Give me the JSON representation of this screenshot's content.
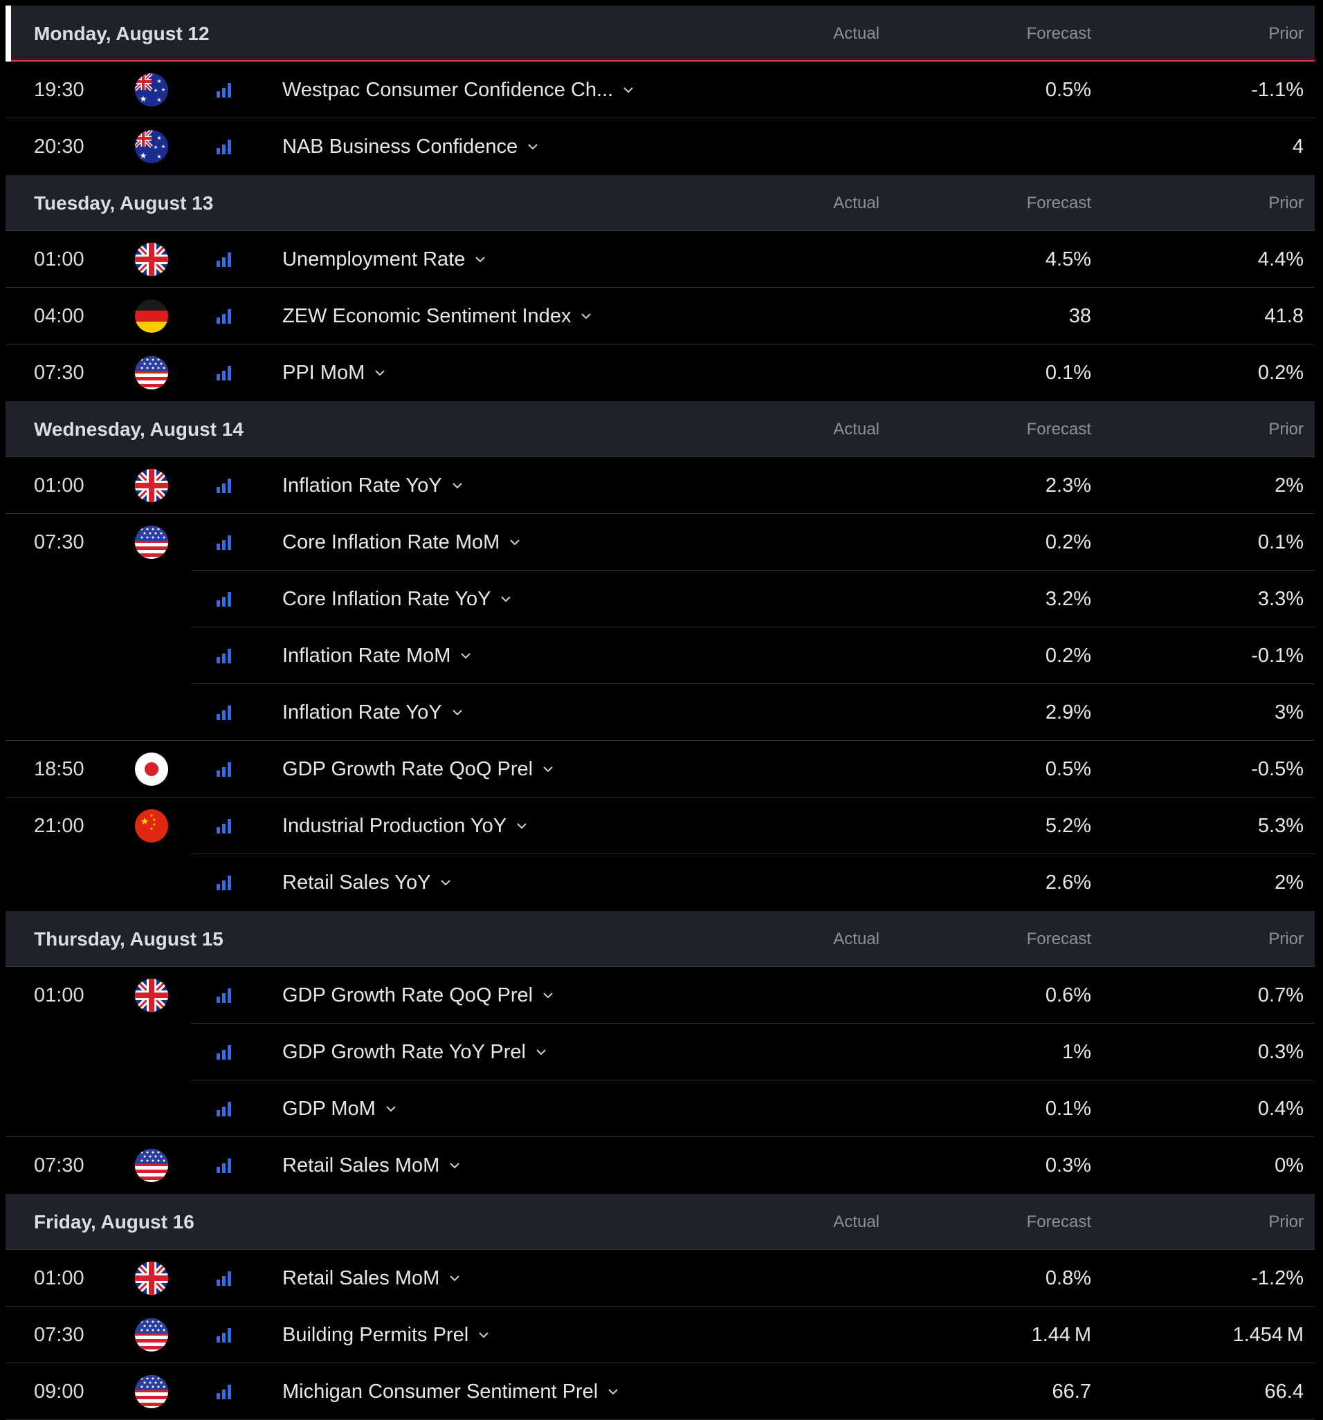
{
  "columns": {
    "actual": "Actual",
    "forecast": "Forecast",
    "prior": "Prior"
  },
  "colors": {
    "background": "#000000",
    "header_bg": "#1f222b",
    "accent_red": "#e23b3b",
    "importance_blue": "#2f6bff"
  },
  "days": [
    {
      "label": "Monday, August 12",
      "events": [
        {
          "time": "19:30",
          "country": "AU",
          "name": "Westpac Consumer Confidence Ch...",
          "actual": "",
          "forecast": "0.5%",
          "prior": "-1.1%"
        },
        {
          "time": "20:30",
          "country": "AU",
          "name": "NAB Business Confidence",
          "actual": "",
          "forecast": "",
          "prior": "4"
        }
      ]
    },
    {
      "label": "Tuesday, August 13",
      "events": [
        {
          "time": "01:00",
          "country": "GB",
          "name": "Unemployment Rate",
          "actual": "",
          "forecast": "4.5%",
          "prior": "4.4%"
        },
        {
          "time": "04:00",
          "country": "DE",
          "name": "ZEW Economic Sentiment Index",
          "actual": "",
          "forecast": "38",
          "prior": "41.8"
        },
        {
          "time": "07:30",
          "country": "US",
          "name": "PPI MoM",
          "actual": "",
          "forecast": "0.1%",
          "prior": "0.2%"
        }
      ]
    },
    {
      "label": "Wednesday, August 14",
      "events": [
        {
          "time": "01:00",
          "country": "GB",
          "name": "Inflation Rate YoY",
          "actual": "",
          "forecast": "2.3%",
          "prior": "2%"
        },
        {
          "time": "07:30",
          "country": "US",
          "name": "Core Inflation Rate MoM",
          "actual": "",
          "forecast": "0.2%",
          "prior": "0.1%"
        },
        {
          "time": "",
          "country": "",
          "name": "Core Inflation Rate YoY",
          "actual": "",
          "forecast": "3.2%",
          "prior": "3.3%"
        },
        {
          "time": "",
          "country": "",
          "name": "Inflation Rate MoM",
          "actual": "",
          "forecast": "0.2%",
          "prior": "-0.1%"
        },
        {
          "time": "",
          "country": "",
          "name": "Inflation Rate YoY",
          "actual": "",
          "forecast": "2.9%",
          "prior": "3%"
        },
        {
          "time": "18:50",
          "country": "JP",
          "name": "GDP Growth Rate QoQ Prel",
          "actual": "",
          "forecast": "0.5%",
          "prior": "-0.5%"
        },
        {
          "time": "21:00",
          "country": "CN",
          "name": "Industrial Production YoY",
          "actual": "",
          "forecast": "5.2%",
          "prior": "5.3%"
        },
        {
          "time": "",
          "country": "",
          "name": "Retail Sales YoY",
          "actual": "",
          "forecast": "2.6%",
          "prior": "2%"
        }
      ]
    },
    {
      "label": "Thursday, August 15",
      "events": [
        {
          "time": "01:00",
          "country": "GB",
          "name": "GDP Growth Rate QoQ Prel",
          "actual": "",
          "forecast": "0.6%",
          "prior": "0.7%"
        },
        {
          "time": "",
          "country": "",
          "name": "GDP Growth Rate YoY Prel",
          "actual": "",
          "forecast": "1%",
          "prior": "0.3%"
        },
        {
          "time": "",
          "country": "",
          "name": "GDP MoM",
          "actual": "",
          "forecast": "0.1%",
          "prior": "0.4%"
        },
        {
          "time": "07:30",
          "country": "US",
          "name": "Retail Sales MoM",
          "actual": "",
          "forecast": "0.3%",
          "prior": "0%"
        }
      ]
    },
    {
      "label": "Friday, August 16",
      "events": [
        {
          "time": "01:00",
          "country": "GB",
          "name": "Retail Sales MoM",
          "actual": "",
          "forecast": "0.8%",
          "prior": "-1.2%"
        },
        {
          "time": "07:30",
          "country": "US",
          "name": "Building Permits Prel",
          "actual": "",
          "forecast": "1.44 M",
          "prior": "1.454 M"
        },
        {
          "time": "09:00",
          "country": "US",
          "name": "Michigan Consumer Sentiment Prel",
          "actual": "",
          "forecast": "66.7",
          "prior": "66.4"
        }
      ]
    }
  ]
}
